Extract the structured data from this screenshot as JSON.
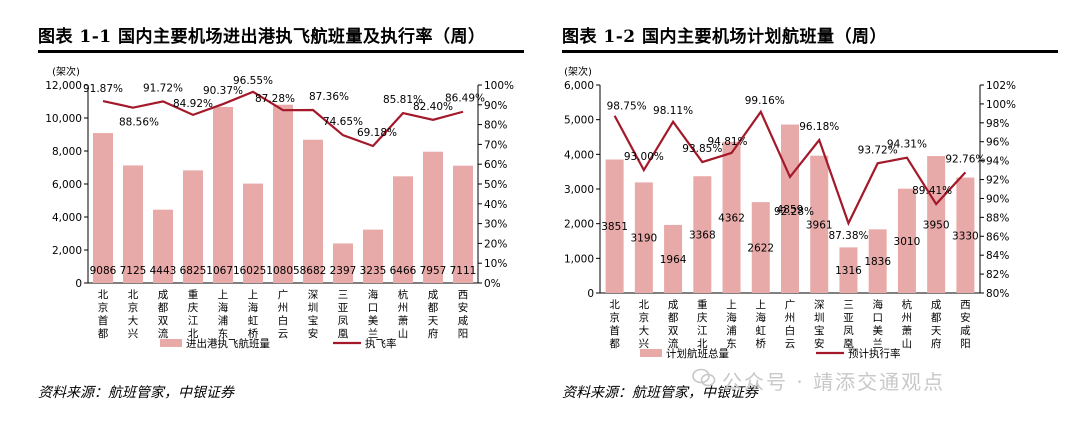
{
  "watermark": "公众号 · 靖添交通观点",
  "colors": {
    "bar": "#e8a9a9",
    "line": "#a3192a",
    "axis": "#000000"
  },
  "chart_data": [
    {
      "type": "bar",
      "title": "图表 1-1 国内主要机场进出港执飞航班量及执行率（周）",
      "source": "资料来源：航班管家，中银证券",
      "unit_label": "(架次)",
      "categories": [
        "北京首都",
        "北京大兴",
        "成都双流",
        "重庆江北",
        "上海浦东",
        "上海虹桥",
        "广州白云",
        "深圳宝安",
        "三亚凤凰",
        "海口美兰",
        "杭州萧山",
        "成都天府",
        "西安咸阳"
      ],
      "y_left": {
        "min": 0,
        "max": 12000,
        "ticks": [
          "0",
          "2,000",
          "4,000",
          "6,000",
          "8,000",
          "10,000",
          "12,000"
        ],
        "tick_values": [
          0,
          2000,
          4000,
          6000,
          8000,
          10000,
          12000
        ]
      },
      "y_right": {
        "min": 0,
        "max": 100,
        "ticks": [
          "0%",
          "10%",
          "20%",
          "30%",
          "40%",
          "50%",
          "60%",
          "70%",
          "80%",
          "90%",
          "100%"
        ],
        "tick_values": [
          0,
          10,
          20,
          30,
          40,
          50,
          60,
          70,
          80,
          90,
          100
        ]
      },
      "series": [
        {
          "name": "进出港执飞航班量",
          "kind": "bar",
          "axis": "left",
          "values": [
            9086,
            7125,
            4443,
            6825,
            10671,
            6025,
            10805,
            8682,
            2397,
            3235,
            6466,
            7957,
            7111
          ],
          "labels": [
            "9086",
            "7125",
            "4443",
            "6825",
            "10671",
            "6025",
            "10805",
            "8682",
            "2397",
            "3235",
            "6466",
            "7957",
            "7111"
          ]
        },
        {
          "name": "执飞率",
          "kind": "line",
          "axis": "right",
          "values": [
            91.87,
            88.56,
            91.72,
            84.92,
            90.37,
            96.55,
            87.28,
            87.36,
            74.65,
            69.18,
            85.81,
            82.4,
            86.49
          ],
          "labels": [
            "91.87%",
            "88.56%",
            "91.72%",
            "84.92%",
            "90.37%",
            "96.55%",
            "87.28%",
            "87.36%",
            "74.65%",
            "69.18%",
            "85.81%",
            "82.40%",
            "86.49%"
          ]
        }
      ]
    },
    {
      "type": "bar",
      "title": "图表 1-2 国内主要机场计划航班量（周）",
      "source": "资料来源：航班管家，中银证券",
      "unit_label": "(架次)",
      "categories": [
        "北京首都",
        "北京大兴",
        "成都双流",
        "重庆江北",
        "上海浦东",
        "上海虹桥",
        "广州白云",
        "深圳宝安",
        "三亚凤凰",
        "海口美兰",
        "杭州萧山",
        "成都天府",
        "西安咸阳"
      ],
      "y_left": {
        "min": 0,
        "max": 6000,
        "ticks": [
          "0",
          "1,000",
          "2,000",
          "3,000",
          "4,000",
          "5,000",
          "6,000"
        ],
        "tick_values": [
          0,
          1000,
          2000,
          3000,
          4000,
          5000,
          6000
        ]
      },
      "y_right": {
        "min": 80,
        "max": 102,
        "ticks": [
          "80%",
          "82%",
          "84%",
          "86%",
          "88%",
          "90%",
          "92%",
          "94%",
          "96%",
          "98%",
          "100%",
          "102%"
        ],
        "tick_values": [
          80,
          82,
          84,
          86,
          88,
          90,
          92,
          94,
          96,
          98,
          100,
          102
        ]
      },
      "series": [
        {
          "name": "计划航班总量",
          "kind": "bar",
          "axis": "left",
          "values": [
            3851,
            3190,
            1964,
            3368,
            4362,
            2622,
            4859,
            3961,
            1316,
            1836,
            3010,
            3950,
            3330
          ],
          "labels": [
            "3851",
            "3190",
            "1964",
            "3368",
            "4362",
            "2622",
            "4859",
            "3961",
            "1316",
            "1836",
            "3010",
            "3950",
            "3330"
          ]
        },
        {
          "name": "预计执行率",
          "kind": "line",
          "axis": "right",
          "values": [
            98.75,
            93.0,
            98.11,
            93.85,
            94.81,
            99.16,
            92.28,
            96.18,
            87.38,
            93.72,
            94.31,
            89.41,
            92.76
          ],
          "labels": [
            "98.75%",
            "93.00%",
            "98.11%",
            "93.85%",
            "94.81%",
            "99.16%",
            "92.28%",
            "96.18%",
            "87.38%",
            "93.72%",
            "94.31%",
            "89.41%",
            "92.76%"
          ]
        }
      ]
    }
  ]
}
